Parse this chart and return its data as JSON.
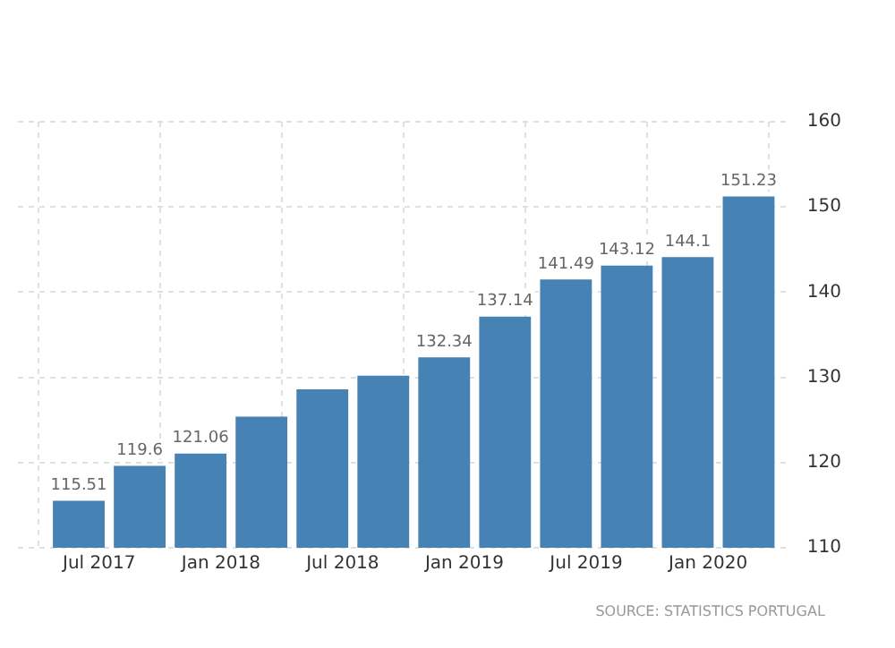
{
  "chart_data": {
    "type": "bar",
    "x": [
      "2017-06",
      "2017-09",
      "2017-12",
      "2018-03",
      "2018-06",
      "2018-09",
      "2018-12",
      "2019-03",
      "2019-06",
      "2019-09",
      "2019-12",
      "2020-03"
    ],
    "series": [
      {
        "color": "#4682b4",
        "values": [
          115.51,
          119.6,
          121.06,
          125.4,
          128.6,
          130.2,
          132.34,
          137.14,
          141.49,
          143.12,
          144.1,
          151.23
        ],
        "value_labels": [
          "115.51",
          "119.6",
          "121.06",
          null,
          null,
          null,
          "132.34",
          "137.14",
          "141.49",
          "143.12",
          "144.1",
          "151.23"
        ]
      }
    ],
    "xlim": [
      "2017-03",
      "2020-05"
    ],
    "xticks": [
      {
        "value": "2017-07",
        "label": "Jul 2017"
      },
      {
        "value": "2018-01",
        "label": "Jan 2018"
      },
      {
        "value": "2018-07",
        "label": "Jul 2018"
      },
      {
        "value": "2019-01",
        "label": "Jan 2019"
      },
      {
        "value": "2019-07",
        "label": "Jul 2019"
      },
      {
        "value": "2020-01",
        "label": "Jan 2020"
      }
    ],
    "ylim": [
      110,
      160
    ],
    "yticks": [
      110,
      120,
      130,
      140,
      150,
      160
    ],
    "grid": true,
    "legend": false,
    "annotations": [
      "SOURCE: STATISTICS PORTUGAL"
    ]
  }
}
